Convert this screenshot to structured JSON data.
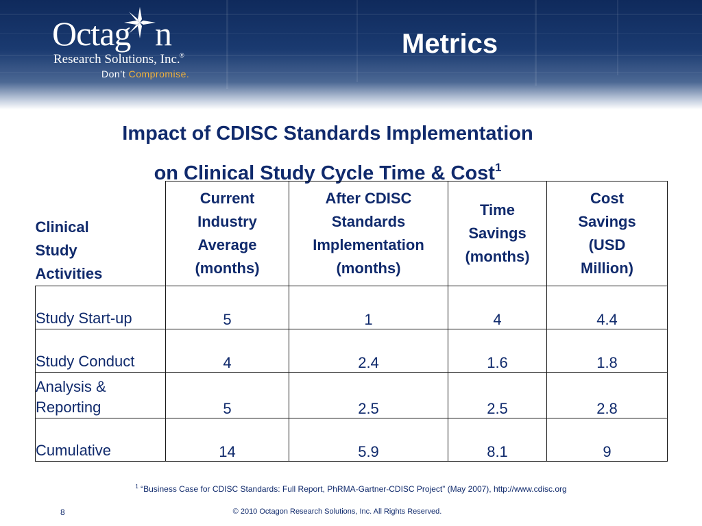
{
  "brand": {
    "name_part1": "Octag",
    "name_part2": "n",
    "subtitle": "Research Solutions, Inc.",
    "registered": "®",
    "tagline_part1": "Don’t",
    "tagline_part2": "Compromise."
  },
  "slide_title": "Metrics",
  "heading": {
    "line1": "Impact of CDISC Standards Implementation",
    "line2": "on Clinical Study Cycle Time & Cost",
    "footnote_marker": "1"
  },
  "table": {
    "headers": [
      "Clinical Study Activities",
      "Current Industry Average (months)",
      "After CDISC Standards Implementation (months)",
      "Time Savings (months)",
      "Cost Savings (USD Million)"
    ],
    "header_lines": [
      [
        "Clinical",
        "Study",
        "Activities"
      ],
      [
        "Current",
        "Industry",
        "Average",
        "(months)"
      ],
      [
        "After CDISC",
        "Standards",
        "Implementation",
        "(months)"
      ],
      [
        "Time",
        "Savings",
        "(months)"
      ],
      [
        "Cost",
        "Savings",
        "(USD",
        "Million)"
      ]
    ],
    "rows": [
      {
        "activity": "Study Start-up",
        "current": "5",
        "after": "1",
        "time_savings": "4",
        "cost_savings": "4.4"
      },
      {
        "activity": "Study Conduct",
        "current": "4",
        "after": "2.4",
        "time_savings": "1.6",
        "cost_savings": "1.8"
      },
      {
        "activity_lines": [
          "Analysis &",
          "Reporting"
        ],
        "current": "5",
        "after": "2.5",
        "time_savings": "2.5",
        "cost_savings": "2.8"
      },
      {
        "activity": "Cumulative",
        "current": "14",
        "after": "5.9",
        "time_savings": "8.1",
        "cost_savings": "9"
      }
    ]
  },
  "footnote": {
    "marker": "1",
    "text": "“Business Case for CDISC Standards: Full Report, PhRMA-Gartner-CDISC Project” (May 2007), http://www.cdisc.org"
  },
  "footer": {
    "page_number": "8",
    "copyright": "© 2010 Octagon Research Solutions, Inc. All Rights Reserved."
  },
  "colors": {
    "banner_dark": "#0f2a5c",
    "text_navy": "#102a6c",
    "tagline_accent": "#f2b23a"
  }
}
